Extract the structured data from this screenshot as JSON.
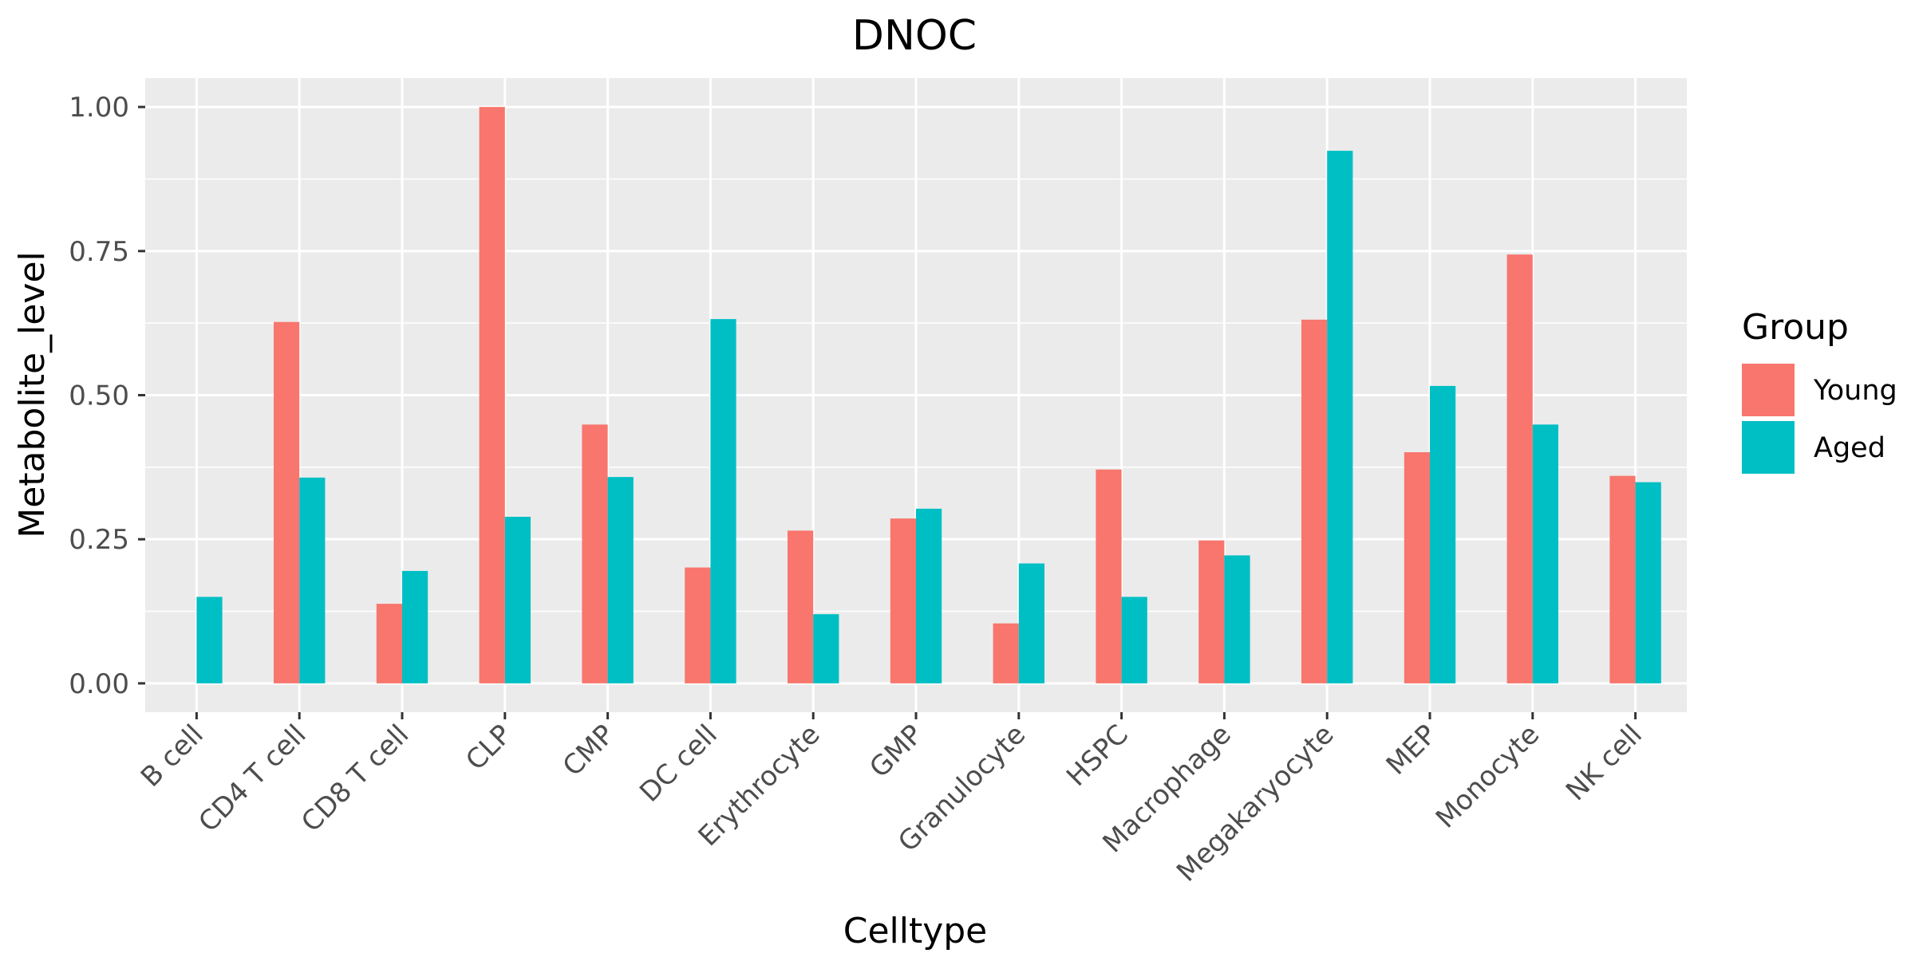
{
  "chart_data": {
    "type": "bar",
    "title": "DNOC",
    "xlabel": "Celltype",
    "ylabel": "Metabolite_level",
    "categories": [
      "B cell",
      "CD4 T cell",
      "CD8 T cell",
      "CLP",
      "CMP",
      "DC cell",
      "Erythrocyte",
      "GMP",
      "Granulocyte",
      "HSPC",
      "Macrophage",
      "Megakaryocyte",
      "MEP",
      "Monocyte",
      "NK cell"
    ],
    "series": [
      {
        "name": "Young",
        "color": "#F8766D",
        "values": [
          0,
          0.627,
          0.138,
          1.0,
          0.449,
          0.201,
          0.265,
          0.286,
          0.104,
          0.371,
          0.248,
          0.631,
          0.401,
          0.744,
          0.36
        ]
      },
      {
        "name": "Aged",
        "color": "#00BFC4",
        "values": [
          0.15,
          0.357,
          0.195,
          0.289,
          0.358,
          0.632,
          0.12,
          0.303,
          0.208,
          0.15,
          0.222,
          0.924,
          0.516,
          0.449,
          0.349
        ]
      }
    ],
    "yticks": [
      "0.00",
      "0.25",
      "0.50",
      "0.75",
      "1.00"
    ],
    "ytick_values": [
      0,
      0.25,
      0.5,
      0.75,
      1.0
    ],
    "ylim": [
      -0.05,
      1.05
    ],
    "grid": true,
    "legend": {
      "title": "Group",
      "position": "right"
    }
  }
}
